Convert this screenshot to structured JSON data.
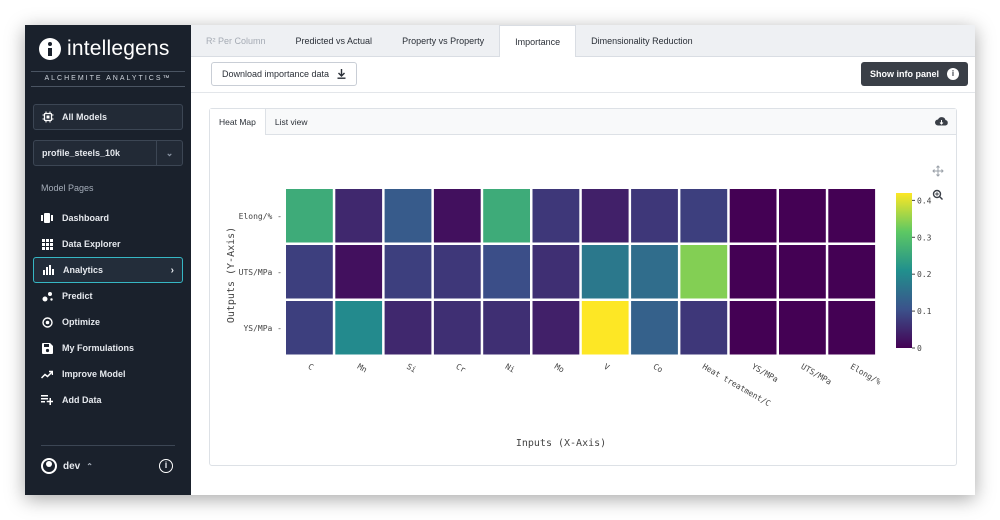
{
  "sidebar": {
    "logo_text": "intellegens",
    "tagline": "ALCHEMITE ANALYTICS™",
    "all_models_label": "All Models",
    "model_select_value": "profile_steels_10k",
    "model_pages_label": "Model Pages",
    "nav": [
      {
        "label": "Dashboard",
        "icon": "dashboard-icon"
      },
      {
        "label": "Data Explorer",
        "icon": "grid-icon"
      },
      {
        "label": "Analytics",
        "icon": "bar-chart-icon",
        "active": true
      },
      {
        "label": "Predict",
        "icon": "predict-icon"
      },
      {
        "label": "Optimize",
        "icon": "target-icon"
      },
      {
        "label": "My Formulations",
        "icon": "save-icon"
      },
      {
        "label": "Improve Model",
        "icon": "trend-icon"
      },
      {
        "label": "Add Data",
        "icon": "add-list-icon"
      }
    ],
    "user_name": "dev"
  },
  "tabs": [
    "R² Per Column",
    "Predicted vs Actual",
    "Property vs Property",
    "Importance",
    "Dimensionality Reduction"
  ],
  "active_tab": "Importance",
  "toolbar": {
    "download_label": "Download importance data",
    "info_panel_label": "Show info panel"
  },
  "subtabs": [
    "Heat Map",
    "List view"
  ],
  "chart_data": {
    "type": "heatmap",
    "xlabel": "Inputs (X-Axis)",
    "ylabel": "Outputs (Y-Axis)",
    "x_categories": [
      "C",
      "Mn",
      "Si",
      "Cr",
      "Ni",
      "Mo",
      "V",
      "Co",
      "Heat treatment/C",
      "YS/MPa",
      "UTS/MPa",
      "Elong/%"
    ],
    "y_categories": [
      "Elong/%",
      "UTS/MPa",
      "YS/MPa"
    ],
    "values": [
      [
        0.26,
        0.05,
        0.12,
        0.02,
        0.26,
        0.07,
        0.04,
        0.07,
        0.08,
        0.0,
        0.0,
        0.0
      ],
      [
        0.08,
        0.02,
        0.08,
        0.07,
        0.1,
        0.06,
        0.17,
        0.15,
        0.34,
        0.0,
        0.0,
        0.0
      ],
      [
        0.08,
        0.2,
        0.05,
        0.06,
        0.06,
        0.04,
        0.42,
        0.13,
        0.07,
        0.0,
        0.0,
        0.0
      ]
    ],
    "colorscale": [
      "#440154",
      "#3b528b",
      "#21908d",
      "#5dc863",
      "#fde725"
    ],
    "zmin": 0,
    "zmax": 0.42,
    "colorbar_ticks": [
      0,
      0.1,
      0.2,
      0.3,
      0.4
    ]
  }
}
